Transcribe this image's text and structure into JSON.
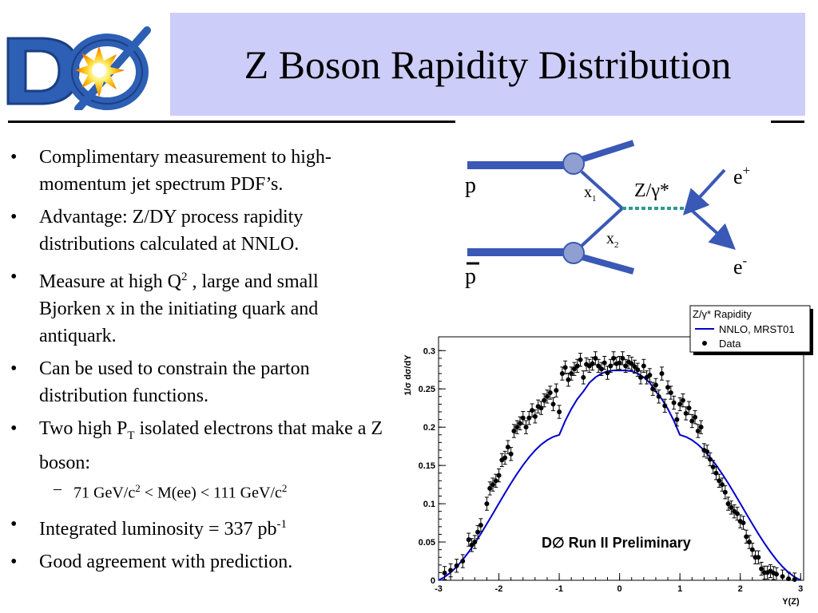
{
  "header": {
    "title": "Z Boson Rapidity Distribution",
    "logo_text": "DØ"
  },
  "bullets": [
    {
      "text": "Complimentary measurement to high-momentum jet spectrum PDF’s."
    },
    {
      "text": "Advantage: Z/DY process rapidity distributions calculated at NNLO."
    },
    {
      "pre": "Measure at high Q",
      "sup": "2",
      "post": " , large and small Bjorken x in the initiating quark and antiquark."
    },
    {
      "text": "Can be used to constrain the parton distribution functions."
    },
    {
      "pre": "Two high P",
      "sub": "T",
      "post": " isolated electrons that make a Z boson:"
    },
    {
      "sub_bullet": {
        "p1": "71 GeV/c",
        "s1": "2",
        "p2": " < M(ee) < 111 GeV/c",
        "s2": "2"
      }
    },
    {
      "pre": "Integrated luminosity = 337 pb",
      "sup": "-1",
      "post": ""
    },
    {
      "text": "Good agreement with prediction."
    }
  ],
  "bullet_symbol": "•",
  "sub_bullet_symbol": "–",
  "feynman": {
    "p_label": "p",
    "pbar_label": "p",
    "x1": "x",
    "x1_sub": "1",
    "x2": "x",
    "x2_sub": "2",
    "boson": "Z/γ*",
    "eplus": "e",
    "eplus_sup": "+",
    "eminus": "e",
    "eminus_sup": "-",
    "line_color": "#3a58b6",
    "blob_color": "#8fa0d0",
    "boson_color": "#2e9a8e"
  },
  "chart_data": {
    "type": "scatter",
    "x_tick_labels": [
      "-3",
      "-2",
      "-1",
      "0",
      "1",
      "2",
      "3"
    ],
    "y_tick_labels": [
      "0",
      "0.05",
      "0.1",
      "0.15",
      "0.2",
      "0.25",
      "0.3"
    ],
    "xlabel": "Y(Z)",
    "ylabel": "1/σ  dσ/dY",
    "xlim": [
      -3,
      3.05
    ],
    "ylim": [
      0,
      0.318
    ],
    "annotation": "D∅ Run II Preliminary",
    "legend": {
      "title": "Z/γ* Rapidity",
      "placement": "top-right",
      "entries": [
        "NNLO, MRST01",
        "Data"
      ]
    },
    "series": [
      {
        "name": "NNLO, MRST01",
        "kind": "line",
        "color": "#0000cc",
        "x": [
          -3.0,
          -2.9,
          -2.8,
          -2.7,
          -2.6,
          -2.5,
          -2.4,
          -2.3,
          -2.2,
          -2.1,
          -2.0,
          -1.9,
          -1.8,
          -1.7,
          -1.6,
          -1.5,
          -1.4,
          -1.3,
          -1.2,
          -1.1,
          -1.0,
          -0.9,
          -0.8,
          -0.7,
          -0.6,
          -0.5,
          -0.4,
          -0.3,
          -0.2,
          -0.1,
          0.0,
          0.1,
          0.2,
          0.3,
          0.4,
          0.5,
          0.6,
          0.7,
          0.8,
          0.9,
          1.0,
          1.1,
          1.2,
          1.3,
          1.4,
          1.5,
          1.6,
          1.7,
          1.8,
          1.9,
          2.0,
          2.1,
          2.2,
          2.3,
          2.4,
          2.5,
          2.6,
          2.7,
          2.8,
          2.9,
          3.0
        ],
        "y": [
          0.0,
          0.0043,
          0.0102,
          0.0177,
          0.0267,
          0.037,
          0.0484,
          0.0607,
          0.0736,
          0.087,
          0.1004,
          0.1138,
          0.1267,
          0.139,
          0.1504,
          0.1607,
          0.1697,
          0.1772,
          0.1831,
          0.1874,
          0.19,
          0.2083,
          0.2239,
          0.2367,
          0.2467,
          0.2581,
          0.2651,
          0.2701,
          0.2731,
          0.2741,
          0.2741,
          0.2741,
          0.2731,
          0.2701,
          0.2651,
          0.2581,
          0.2467,
          0.2367,
          0.2239,
          0.2083,
          0.19,
          0.1874,
          0.1831,
          0.1772,
          0.1697,
          0.1607,
          0.1504,
          0.139,
          0.1267,
          0.1138,
          0.1004,
          0.087,
          0.0736,
          0.0607,
          0.0484,
          0.037,
          0.0267,
          0.0177,
          0.0102,
          0.0043,
          0.0
        ]
      },
      {
        "name": "Data",
        "kind": "points",
        "color": "#000000",
        "x": [
          -2.9,
          -2.8,
          -2.7,
          -2.6,
          -2.5,
          -2.45,
          -2.4,
          -2.35,
          -2.3,
          -2.2,
          -2.15,
          -2.1,
          -2.05,
          -2.0,
          -1.95,
          -1.9,
          -1.85,
          -1.8,
          -1.75,
          -1.7,
          -1.65,
          -1.6,
          -1.55,
          -1.5,
          -1.45,
          -1.4,
          -1.35,
          -1.3,
          -1.25,
          -1.2,
          -1.15,
          -1.1,
          -1.05,
          -1.0,
          -0.95,
          -0.9,
          -0.85,
          -0.8,
          -0.75,
          -0.7,
          -0.65,
          -0.6,
          -0.55,
          -0.5,
          -0.45,
          -0.4,
          -0.35,
          -0.3,
          -0.25,
          -0.2,
          -0.15,
          -0.1,
          -0.05,
          0.0,
          0.05,
          0.1,
          0.15,
          0.2,
          0.25,
          0.3,
          0.35,
          0.4,
          0.45,
          0.5,
          0.55,
          0.6,
          0.65,
          0.7,
          0.75,
          0.8,
          0.85,
          0.9,
          0.95,
          1.0,
          1.05,
          1.1,
          1.15,
          1.2,
          1.25,
          1.3,
          1.35,
          1.4,
          1.45,
          1.5,
          1.55,
          1.6,
          1.65,
          1.7,
          1.75,
          1.8,
          1.85,
          1.9,
          1.95,
          2.0,
          2.05,
          2.1,
          2.15,
          2.2,
          2.25,
          2.3,
          2.35,
          2.4,
          2.45,
          2.5,
          2.55,
          2.6,
          2.7,
          2.8,
          2.9
        ],
        "y": [
          0.0095,
          0.013,
          0.019,
          0.025,
          0.053,
          0.046,
          0.05,
          0.063,
          0.072,
          0.1,
          0.12,
          0.125,
          0.13,
          0.137,
          0.157,
          0.16,
          0.174,
          0.165,
          0.195,
          0.2,
          0.205,
          0.212,
          0.2,
          0.212,
          0.222,
          0.214,
          0.227,
          0.225,
          0.235,
          0.24,
          0.245,
          0.23,
          0.248,
          0.22,
          0.27,
          0.278,
          0.262,
          0.27,
          0.276,
          0.28,
          0.288,
          0.265,
          0.282,
          0.28,
          0.283,
          0.29,
          0.28,
          0.276,
          0.284,
          0.271,
          0.28,
          0.29,
          0.283,
          0.284,
          0.29,
          0.28,
          0.285,
          0.283,
          0.279,
          0.275,
          0.265,
          0.28,
          0.265,
          0.268,
          0.25,
          0.255,
          0.24,
          0.27,
          0.228,
          0.252,
          0.245,
          0.232,
          0.21,
          0.23,
          0.235,
          0.218,
          0.225,
          0.208,
          0.213,
          0.195,
          0.2,
          0.17,
          0.168,
          0.158,
          0.148,
          0.14,
          0.13,
          0.125,
          0.115,
          0.1,
          0.095,
          0.09,
          0.087,
          0.077,
          0.075,
          0.057,
          0.05,
          0.04,
          0.03,
          0.03,
          0.015,
          0.01,
          0.01,
          0.012,
          0.0095,
          0.008,
          0.005,
          0.002,
          0.001
        ],
        "err": 0.0085
      }
    ]
  }
}
